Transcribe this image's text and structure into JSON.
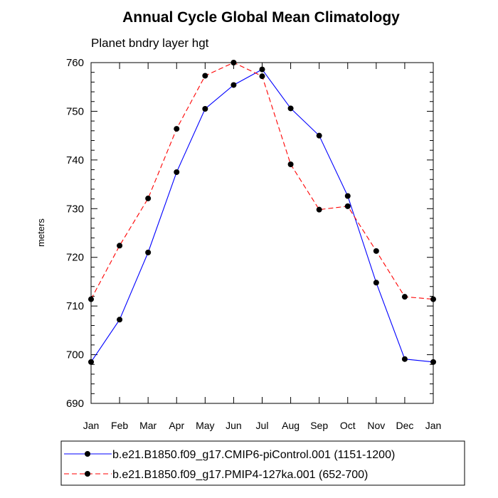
{
  "chart_data": {
    "type": "line",
    "title": "Annual Cycle Global Mean Climatology",
    "subtitle": "Planet bndry layer hgt",
    "xlabel": "",
    "ylabel": "meters",
    "categories": [
      "Jan",
      "Feb",
      "Mar",
      "Apr",
      "May",
      "Jun",
      "Jul",
      "Aug",
      "Sep",
      "Oct",
      "Nov",
      "Dec",
      "Jan"
    ],
    "ylim": [
      690,
      760
    ],
    "yticks": [
      690,
      700,
      710,
      720,
      730,
      740,
      750,
      760
    ],
    "grid": false,
    "legend_position": "bottom",
    "series": [
      {
        "name": "b.e21.B1850.f09_g17.CMIP6-piControl.001 (1151-1200)",
        "color": "#0000ff",
        "dash": "solid",
        "marker": "filled-circle",
        "values": [
          698.5,
          707.2,
          721.0,
          737.5,
          750.5,
          755.4,
          758.6,
          750.6,
          745.0,
          732.6,
          714.8,
          699.1,
          698.5
        ]
      },
      {
        "name": "b.e21.B1850.f09_g17.PMIP4-127ka.001 (652-700)",
        "color": "#ff0000",
        "dash": "dashed",
        "marker": "filled-circle",
        "values": [
          711.4,
          722.4,
          732.1,
          746.4,
          757.3,
          760.0,
          757.2,
          739.1,
          729.8,
          730.5,
          721.3,
          711.9,
          711.4
        ]
      }
    ]
  }
}
